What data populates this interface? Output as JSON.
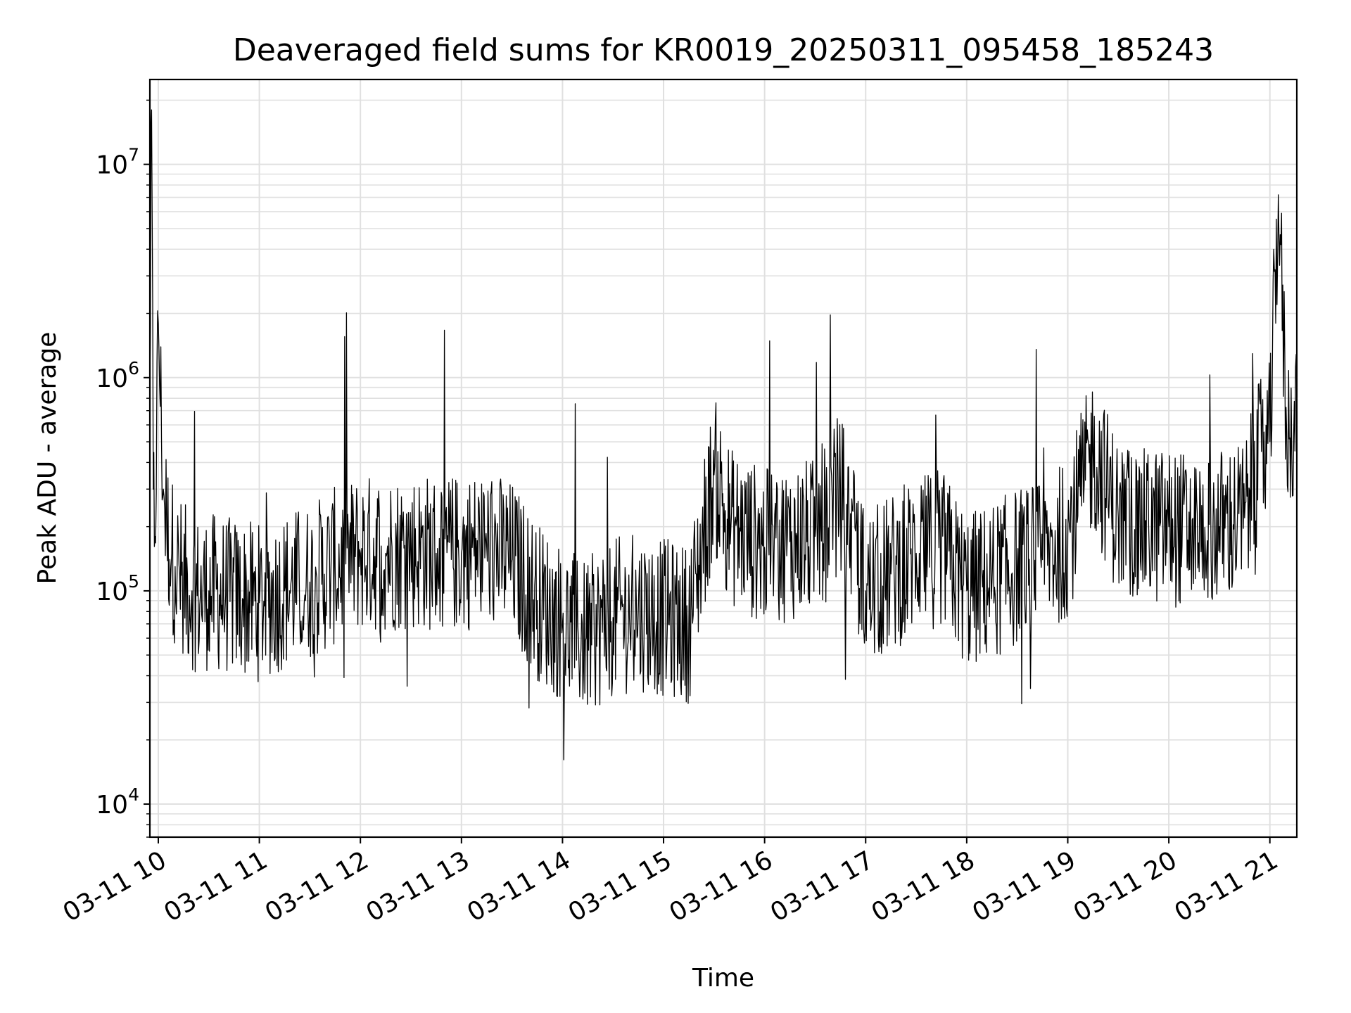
{
  "chart_data": {
    "type": "line",
    "title": "Deaveraged field sums for KR0019_20250311_095458_185243",
    "xlabel": "Time",
    "ylabel": "Peak ADU - average",
    "yscale": "log",
    "ylim": [
      7000,
      25000000
    ],
    "xlim": [
      "2025-03-11 09:55",
      "2025-03-11 21:16"
    ],
    "grid": true,
    "line_color": "#000000",
    "grid_color": "#e0e0e0",
    "x_ticks": [
      {
        "value": "2025-03-11 10:00",
        "label": "03-11 10"
      },
      {
        "value": "2025-03-11 11:00",
        "label": "03-11 11"
      },
      {
        "value": "2025-03-11 12:00",
        "label": "03-11 12"
      },
      {
        "value": "2025-03-11 13:00",
        "label": "03-11 13"
      },
      {
        "value": "2025-03-11 14:00",
        "label": "03-11 14"
      },
      {
        "value": "2025-03-11 15:00",
        "label": "03-11 15"
      },
      {
        "value": "2025-03-11 16:00",
        "label": "03-11 16"
      },
      {
        "value": "2025-03-11 17:00",
        "label": "03-11 17"
      },
      {
        "value": "2025-03-11 18:00",
        "label": "03-11 18"
      },
      {
        "value": "2025-03-11 19:00",
        "label": "03-11 19"
      },
      {
        "value": "2025-03-11 20:00",
        "label": "03-11 20"
      },
      {
        "value": "2025-03-11 21:00",
        "label": "03-11 21"
      }
    ],
    "y_ticks": [
      {
        "value": 10000,
        "base": "10",
        "exp": "4"
      },
      {
        "value": 100000,
        "base": "10",
        "exp": "5"
      },
      {
        "value": 1000000,
        "base": "10",
        "exp": "6"
      },
      {
        "value": 10000000,
        "base": "10",
        "exp": "7"
      }
    ],
    "series": [
      {
        "x": [
          "2025-03-11 09:55",
          "2025-03-11 09:56",
          "2025-03-11 09:57",
          "2025-03-11 09:58",
          "2025-03-11 10:00",
          "2025-03-11 10:03",
          "2025-03-11 10:05",
          "2025-03-11 10:08",
          "2025-03-11 10:10",
          "2025-03-11 10:15",
          "2025-03-11 10:20",
          "2025-03-11 10:25",
          "2025-03-11 10:30",
          "2025-03-11 10:40",
          "2025-03-11 10:50",
          "2025-03-11 11:00",
          "2025-03-11 11:15",
          "2025-03-11 11:30",
          "2025-03-11 11:45",
          "2025-03-11 12:00",
          "2025-03-11 12:15",
          "2025-03-11 12:30",
          "2025-03-11 12:45",
          "2025-03-11 13:00",
          "2025-03-11 13:15",
          "2025-03-11 13:30",
          "2025-03-11 13:45",
          "2025-03-11 14:00",
          "2025-03-11 14:14",
          "2025-03-11 14:30",
          "2025-03-11 14:45",
          "2025-03-11 15:00",
          "2025-03-11 15:15",
          "2025-03-11 15:30",
          "2025-03-11 15:40",
          "2025-03-11 16:00",
          "2025-03-11 16:15",
          "2025-03-11 16:30",
          "2025-03-11 16:45",
          "2025-03-11 17:00",
          "2025-03-11 17:15",
          "2025-03-11 17:30",
          "2025-03-11 17:45",
          "2025-03-11 18:00",
          "2025-03-11 18:15",
          "2025-03-11 18:30",
          "2025-03-11 18:45",
          "2025-03-11 19:00",
          "2025-03-11 19:15",
          "2025-03-11 19:30",
          "2025-03-11 19:45",
          "2025-03-11 20:00",
          "2025-03-11 20:15",
          "2025-03-11 20:30",
          "2025-03-11 20:45",
          "2025-03-11 20:55",
          "2025-03-11 21:00",
          "2025-03-11 21:05",
          "2025-03-11 21:10",
          "2025-03-11 21:16"
        ],
        "y": [
          900000,
          18000000,
          300000,
          180000,
          1800000,
          300000,
          200000,
          150000,
          130000,
          110000,
          100000,
          95000,
          100000,
          95000,
          92000,
          88000,
          100000,
          110000,
          130000,
          150000,
          150000,
          155000,
          150000,
          150000,
          160000,
          140000,
          90000,
          70000,
          60000,
          75000,
          80000,
          75000,
          70000,
          350000,
          200000,
          160000,
          170000,
          180000,
          300000,
          100000,
          120000,
          150000,
          160000,
          100000,
          110000,
          130000,
          140000,
          180000,
          450000,
          220000,
          200000,
          200000,
          190000,
          200000,
          220000,
          450000,
          500000,
          7200000,
          550000,
          650000
        ]
      }
    ]
  }
}
